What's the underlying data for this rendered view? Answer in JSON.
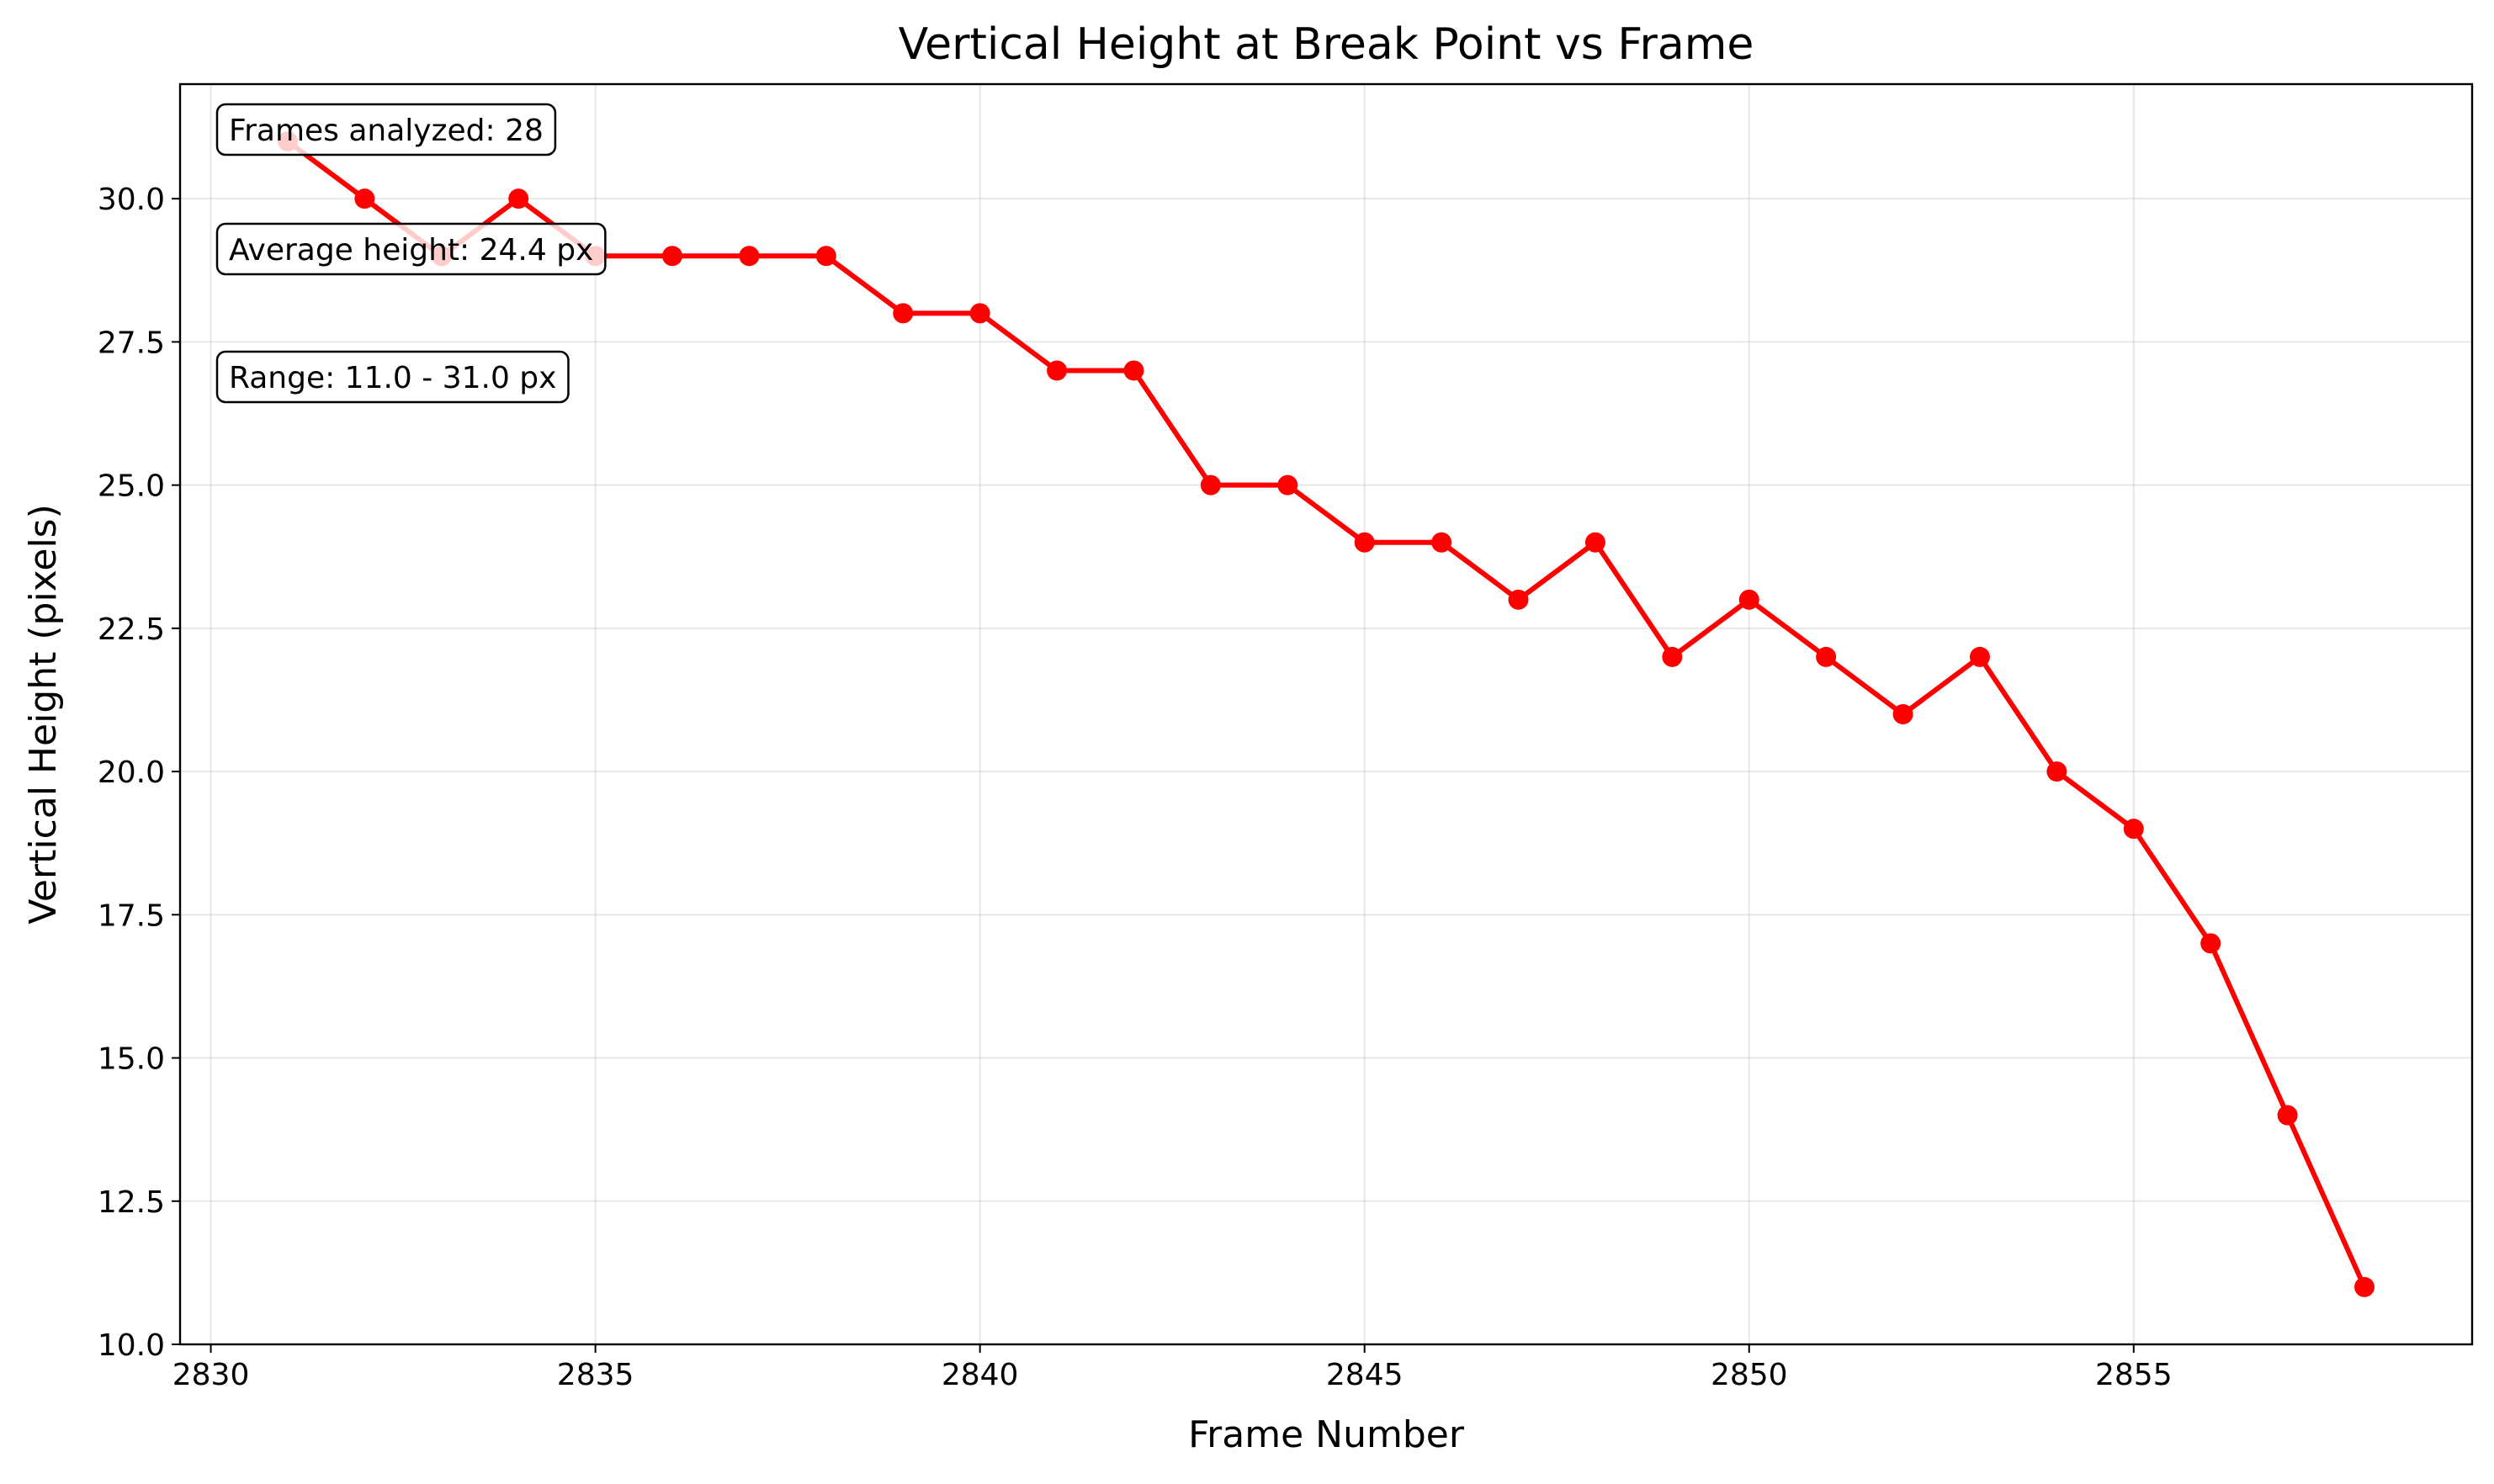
{
  "chart_data": {
    "type": "line",
    "title": "Vertical Height at Break Point vs Frame",
    "xlabel": "Frame Number",
    "ylabel": "Vertical Height (pixels)",
    "xlim": [
      2829.6,
      2859.4
    ],
    "ylim": [
      10.0,
      32.0
    ],
    "xticks": [
      "2830",
      "2835",
      "2840",
      "2845",
      "2850",
      "2855"
    ],
    "yticks": [
      "10.0",
      "12.5",
      "15.0",
      "17.5",
      "20.0",
      "22.5",
      "25.0",
      "27.5",
      "30.0"
    ],
    "grid": true,
    "series": [
      {
        "color": "#ff0000",
        "marker": "circle",
        "x": [
          2831,
          2832,
          2833,
          2834,
          2835,
          2836,
          2837,
          2838,
          2839,
          2840,
          2841,
          2842,
          2843,
          2844,
          2845,
          2846,
          2847,
          2848,
          2849,
          2850,
          2851,
          2852,
          2853,
          2854,
          2855,
          2856,
          2857,
          2858
        ],
        "y": [
          31,
          30,
          29,
          30,
          29,
          29,
          29,
          29,
          28,
          28,
          27,
          27,
          25,
          25,
          24,
          24,
          23,
          24,
          22,
          23,
          22,
          21,
          22,
          20,
          19,
          17,
          14,
          11
        ]
      }
    ],
    "annotations": [
      "Frames analyzed: 28",
      "Average height: 24.4 px",
      "Range: 11.0 - 31.0 px"
    ]
  }
}
